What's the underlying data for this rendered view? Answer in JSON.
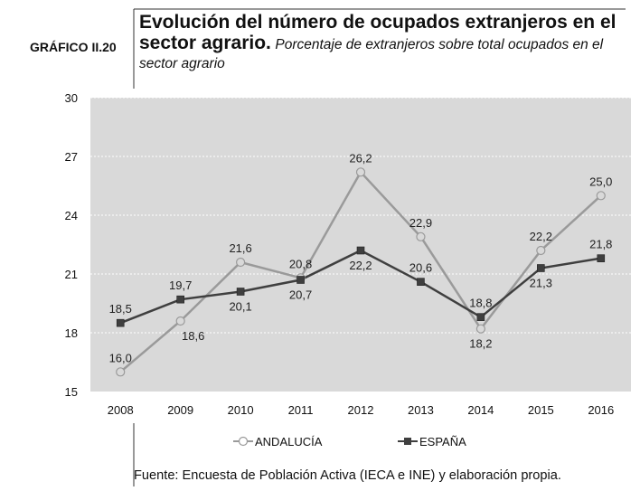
{
  "chart_data": {
    "type": "line",
    "label": "GRÁFICO II.20",
    "title": "Evolución del número de ocupados extranjeros en el sector agrario.",
    "subtitle": "Porcentaje de extranjeros sobre total ocupados en el sector agrario",
    "source": "Fuente: Encuesta de Población Activa (IECA e INE) y elaboración propia.",
    "categories": [
      "2008",
      "2009",
      "2010",
      "2011",
      "2012",
      "2013",
      "2014",
      "2015",
      "2016"
    ],
    "series": [
      {
        "name": "ANDALUCÍA",
        "color": "#9a9a9a",
        "marker": "circle",
        "values": [
          16.0,
          18.6,
          21.6,
          20.8,
          26.2,
          22.9,
          18.2,
          22.2,
          25.0
        ],
        "value_labels": [
          "16,0",
          "18,6",
          "21,6",
          "20,8",
          "26,2",
          "22,9",
          "18,2",
          "22,2",
          "25,0"
        ]
      },
      {
        "name": "ESPAÑA",
        "color": "#3f3f3f",
        "marker": "square",
        "values": [
          18.5,
          19.7,
          20.1,
          20.7,
          22.2,
          20.6,
          18.8,
          21.3,
          21.8
        ],
        "value_labels": [
          "18,5",
          "19,7",
          "20,1",
          "20,7",
          "22,2",
          "20,6",
          "18,8",
          "21,3",
          "21,8"
        ]
      }
    ],
    "ylim": [
      15,
      30
    ],
    "yticks": [
      15,
      18,
      21,
      24,
      27,
      30
    ],
    "grid": true
  }
}
